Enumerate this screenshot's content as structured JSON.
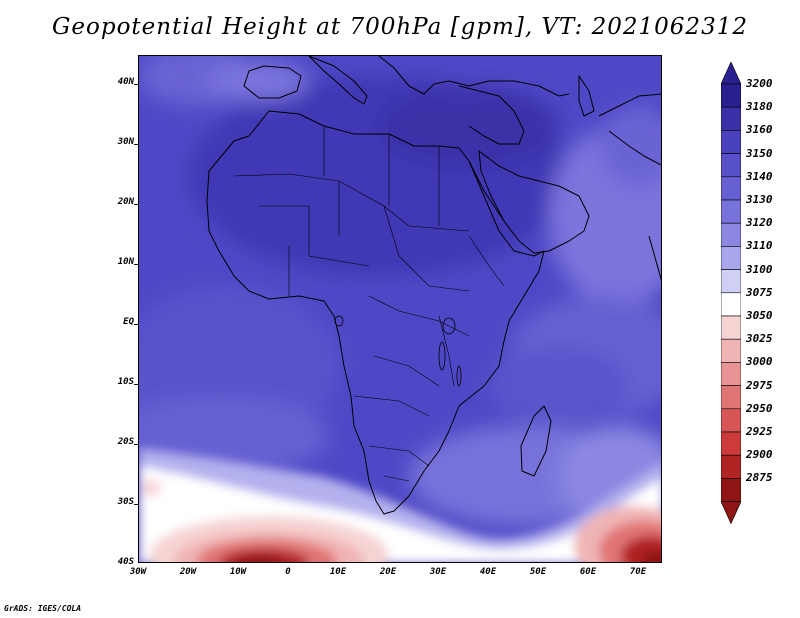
{
  "title": "Geopotential Height at 700hPa [gpm], VT: 2021062312",
  "credit": "GrADS: IGES/COLA",
  "map": {
    "latitude_labels": [
      "40N",
      "30N",
      "20N",
      "10N",
      "EQ",
      "10S",
      "20S",
      "30S",
      "40S"
    ],
    "longitude_labels": [
      "30W",
      "20W",
      "10W",
      "0",
      "10E",
      "20E",
      "30E",
      "40E",
      "50E",
      "60E",
      "70E"
    ],
    "extent": {
      "lon_min": -30,
      "lon_max": 75,
      "lat_min": -40,
      "lat_max": 45
    },
    "dominant_range_gpm": "3110-3180",
    "low_height_regions": [
      "South Atlantic south of 30S",
      "Southern Indian Ocean south of 35S"
    ]
  },
  "colorbar": {
    "labels": [
      "3200",
      "3180",
      "3160",
      "3150",
      "3140",
      "3130",
      "3120",
      "3110",
      "3100",
      "3075",
      "3050",
      "3025",
      "3000",
      "2975",
      "2950",
      "2925",
      "2900",
      "2875"
    ],
    "colors": [
      "#2a1f8f",
      "#3a30a8",
      "#4a42bd",
      "#5750c9",
      "#6660d2",
      "#7873da",
      "#8c88e2",
      "#a9a6eb",
      "#d0cff5",
      "#ffffff",
      "#f6d3d3",
      "#f0b4b4",
      "#e89494",
      "#e07575",
      "#d85555",
      "#cc3a3a",
      "#b02424",
      "#8f1515"
    ],
    "extend_top_color": "#2a1f8f",
    "extend_bottom_color": "#8f1515"
  }
}
